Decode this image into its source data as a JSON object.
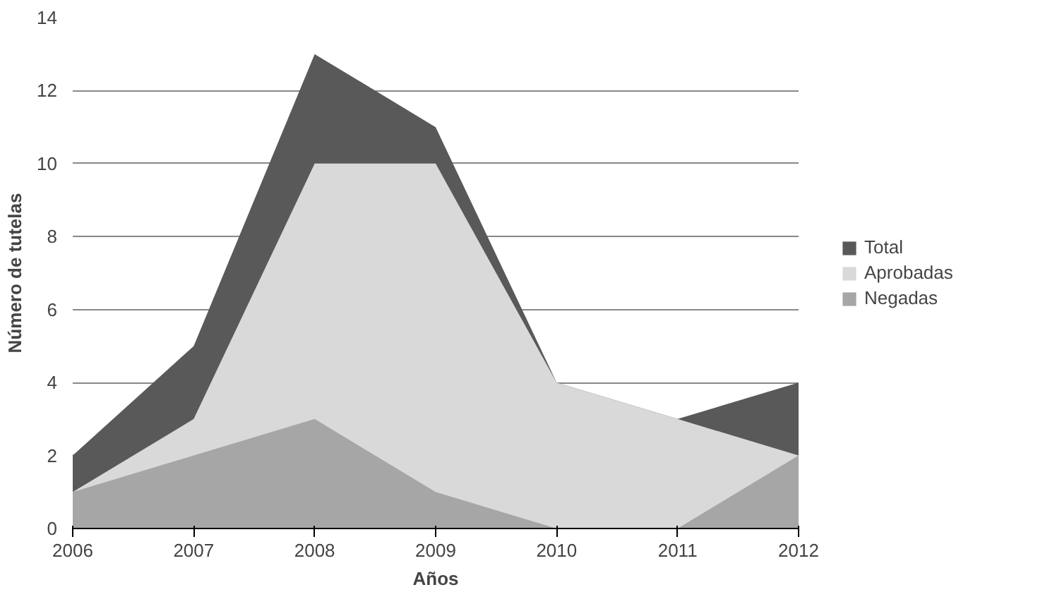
{
  "chart_data": {
    "type": "area",
    "xlabel": "Años",
    "ylabel": "Número de tutelas",
    "x": [
      2006,
      2007,
      2008,
      2009,
      2010,
      2011,
      2012
    ],
    "series": [
      {
        "name": "Total",
        "color": "#595959",
        "values": [
          2,
          5,
          13,
          11,
          4,
          3,
          4
        ]
      },
      {
        "name": "Aprobadas",
        "color": "#d9d9d9",
        "values": [
          1,
          3,
          10,
          10,
          4,
          3,
          2
        ]
      },
      {
        "name": "Negadas",
        "color": "#a6a6a6",
        "values": [
          1,
          2,
          3,
          1,
          0,
          0,
          2
        ]
      }
    ],
    "xlim": [
      2006,
      2012
    ],
    "xticks": [
      2006,
      2007,
      2008,
      2009,
      2010,
      2011,
      2012
    ],
    "ylim": [
      0,
      14
    ],
    "yticks": [
      0,
      2,
      4,
      6,
      8,
      10,
      12,
      14
    ],
    "grid": "y",
    "legend": "right"
  }
}
